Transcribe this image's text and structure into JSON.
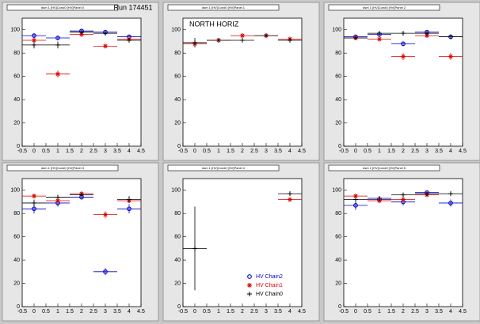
{
  "chart_data": [
    {
      "type": "scatter",
      "title": "dsm 1 [HV]Cond0 [HV]Panel 0",
      "annotation": "Run 174451",
      "x": [
        0,
        1,
        2,
        3,
        4
      ],
      "xerr": 0.5,
      "xlim": [
        -0.5,
        4.5
      ],
      "xticks": [
        -0.5,
        0,
        0.5,
        1,
        1.5,
        2,
        2.5,
        3,
        3.5,
        4,
        4.5
      ],
      "ylim": [
        0,
        110
      ],
      "yticks": [
        0,
        20,
        40,
        60,
        80,
        100
      ],
      "series": [
        {
          "name": "HV Chain2",
          "color": "#0000cc",
          "marker": "circle",
          "values": [
            95,
            93,
            99,
            98,
            94
          ],
          "errors": [
            2,
            2,
            1,
            1,
            2
          ]
        },
        {
          "name": "HV Chain1",
          "color": "#dd0000",
          "marker": "star",
          "values": [
            91,
            62,
            96,
            86,
            92
          ],
          "errors": [
            2,
            3,
            2,
            2,
            2
          ]
        },
        {
          "name": "HV Chain0",
          "color": "#000000",
          "marker": "cross",
          "values": [
            87,
            87,
            98,
            97,
            91
          ],
          "errors": [
            3,
            3,
            1,
            1,
            2
          ]
        }
      ]
    },
    {
      "type": "scatter",
      "title": "dsm 1 [HV]Cond0 [HV]Panel 1",
      "annotation": "NORTH HORIZ",
      "x": [
        0,
        1,
        2,
        3,
        4
      ],
      "xerr": 0.5,
      "xlim": [
        -0.5,
        4.5
      ],
      "xticks": [
        -0.5,
        0,
        0.5,
        1,
        1.5,
        2,
        2.5,
        3,
        3.5,
        4,
        4.5
      ],
      "ylim": [
        0,
        110
      ],
      "yticks": [
        0,
        20,
        40,
        60,
        80,
        100
      ],
      "series": [
        {
          "name": "HV Chain1",
          "color": "#dd0000",
          "marker": "star",
          "values": [
            88,
            91,
            95,
            95,
            92
          ],
          "errors": [
            3,
            2,
            2,
            2,
            2
          ]
        },
        {
          "name": "HV Chain0",
          "color": "#000000",
          "marker": "cross",
          "values": [
            89,
            91,
            91,
            95,
            91
          ],
          "errors": [
            4,
            2,
            2,
            2,
            2
          ]
        }
      ]
    },
    {
      "type": "scatter",
      "title": "dsm 1 [HV]Cond0 [HV]Panel 2",
      "x": [
        0,
        1,
        2,
        3,
        4
      ],
      "xerr": 0.5,
      "xlim": [
        -0.5,
        4.5
      ],
      "xticks": [
        -0.5,
        0,
        0.5,
        1,
        1.5,
        2,
        2.5,
        3,
        3.5,
        4,
        4.5
      ],
      "ylim": [
        0,
        110
      ],
      "yticks": [
        0,
        20,
        40,
        60,
        80,
        100
      ],
      "series": [
        {
          "name": "HV Chain2",
          "color": "#0000cc",
          "marker": "circle",
          "values": [
            94,
            96,
            88,
            98,
            94
          ],
          "errors": [
            2,
            2,
            2,
            1,
            2
          ]
        },
        {
          "name": "HV Chain1",
          "color": "#dd0000",
          "marker": "star",
          "values": [
            93,
            92,
            77,
            95,
            77
          ],
          "errors": [
            2,
            2,
            3,
            2,
            3
          ]
        },
        {
          "name": "HV Chain0",
          "color": "#000000",
          "marker": "cross",
          "values": [
            93,
            97,
            97,
            97,
            94
          ],
          "errors": [
            2,
            1,
            1,
            1,
            2
          ]
        }
      ]
    },
    {
      "type": "scatter",
      "title": "dsm 1 [HV]Cond0 [HV]Panel 3",
      "x": [
        0,
        1,
        2,
        3,
        4
      ],
      "xerr": 0.5,
      "xlim": [
        -0.5,
        4.5
      ],
      "xticks": [
        -0.5,
        0,
        0.5,
        1,
        1.5,
        2,
        2.5,
        3,
        3.5,
        4,
        4.5
      ],
      "ylim": [
        0,
        110
      ],
      "yticks": [
        0,
        20,
        40,
        60,
        80,
        100
      ],
      "series": [
        {
          "name": "HV Chain2",
          "color": "#0000cc",
          "marker": "circle",
          "values": [
            84,
            89,
            94,
            30,
            84
          ],
          "errors": [
            4,
            3,
            2,
            3,
            4
          ]
        },
        {
          "name": "HV Chain1",
          "color": "#dd0000",
          "marker": "star",
          "values": [
            95,
            91,
            97,
            79,
            91
          ],
          "errors": [
            2,
            2,
            1,
            3,
            2
          ]
        },
        {
          "name": "HV Chain0",
          "color": "#000000",
          "marker": "cross",
          "values": [
            89,
            94,
            96,
            null,
            92
          ],
          "errors": [
            3,
            2,
            1,
            null,
            3
          ]
        }
      ]
    },
    {
      "type": "scatter",
      "title": "dsm 1 [HV]Cond0 [HV]Panel 4",
      "legend": "bottom-right",
      "x": [
        0,
        1,
        2,
        3,
        4
      ],
      "xerr": 0.5,
      "xlim": [
        -0.5,
        4.5
      ],
      "xticks": [
        -0.5,
        0,
        0.5,
        1,
        1.5,
        2,
        2.5,
        3,
        3.5,
        4,
        4.5
      ],
      "ylim": [
        0,
        110
      ],
      "yticks": [
        0,
        20,
        40,
        60,
        80,
        100
      ],
      "series": [
        {
          "name": "HV Chain2",
          "color": "#0000cc",
          "marker": "circle",
          "values": [
            null,
            null,
            null,
            null,
            null
          ],
          "errors": [
            null,
            null,
            null,
            null,
            null
          ]
        },
        {
          "name": "HV Chain1",
          "color": "#dd0000",
          "marker": "star",
          "values": [
            null,
            null,
            null,
            null,
            92
          ],
          "errors": [
            null,
            null,
            null,
            null,
            2
          ]
        },
        {
          "name": "HV Chain0",
          "color": "#000000",
          "marker": "cross",
          "values": [
            50,
            null,
            null,
            null,
            97
          ],
          "errors": [
            36,
            null,
            null,
            null,
            2
          ]
        }
      ]
    },
    {
      "type": "scatter",
      "title": "dsm 1 [HV]Cond0 [HV]Panel 5",
      "x": [
        0,
        1,
        2,
        3,
        4
      ],
      "xerr": 0.5,
      "xlim": [
        -0.5,
        4.5
      ],
      "xticks": [
        -0.5,
        0,
        0.5,
        1,
        1.5,
        2,
        2.5,
        3,
        3.5,
        4,
        4.5
      ],
      "ylim": [
        0,
        110
      ],
      "yticks": [
        0,
        20,
        40,
        60,
        80,
        100
      ],
      "series": [
        {
          "name": "HV Chain2",
          "color": "#0000cc",
          "marker": "circle",
          "values": [
            87,
            92,
            90,
            98,
            89
          ],
          "errors": [
            4,
            2,
            3,
            1,
            3
          ]
        },
        {
          "name": "HV Chain1",
          "color": "#dd0000",
          "marker": "star",
          "values": [
            95,
            91,
            92,
            96,
            null
          ],
          "errors": [
            2,
            2,
            2,
            1,
            null
          ]
        },
        {
          "name": "HV Chain0",
          "color": "#000000",
          "marker": "cross",
          "values": [
            92,
            93,
            96,
            97,
            97
          ],
          "errors": [
            2,
            2,
            1,
            1,
            1
          ]
        }
      ]
    }
  ]
}
